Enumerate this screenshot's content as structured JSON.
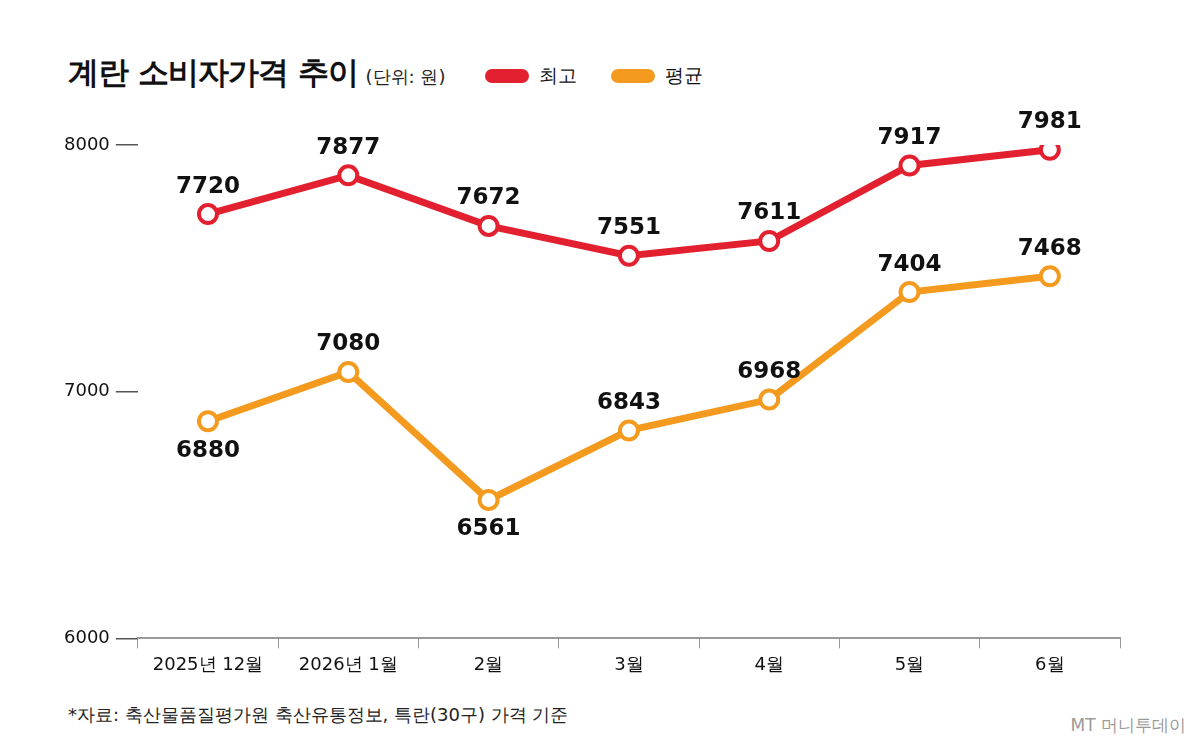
{
  "chart_data": {
    "type": "line",
    "title": "계란 소비자가격 추이",
    "subtitle": "(단위: 원)",
    "categories": [
      "2025년 12월",
      "2026년 1월",
      "2월",
      "3월",
      "4월",
      "5월",
      "6월"
    ],
    "series": [
      {
        "name": "최고",
        "color": "#e3202f",
        "values": [
          7720,
          7877,
          7672,
          7551,
          7611,
          7917,
          7981
        ]
      },
      {
        "name": "평균",
        "color": "#f39a1f",
        "values": [
          6880,
          7080,
          6561,
          6843,
          6968,
          7404,
          7468
        ]
      }
    ],
    "ylim": [
      6000,
      8000
    ],
    "yticks": [
      6000,
      7000,
      8000
    ],
    "grid": false,
    "legend": "top",
    "data_labels": true,
    "marker": "circle",
    "source": "*자료: 축산물품질평가원 축산유통정보, 특란(30구) 가격 기준",
    "watermark": "MT 머니투데이"
  }
}
